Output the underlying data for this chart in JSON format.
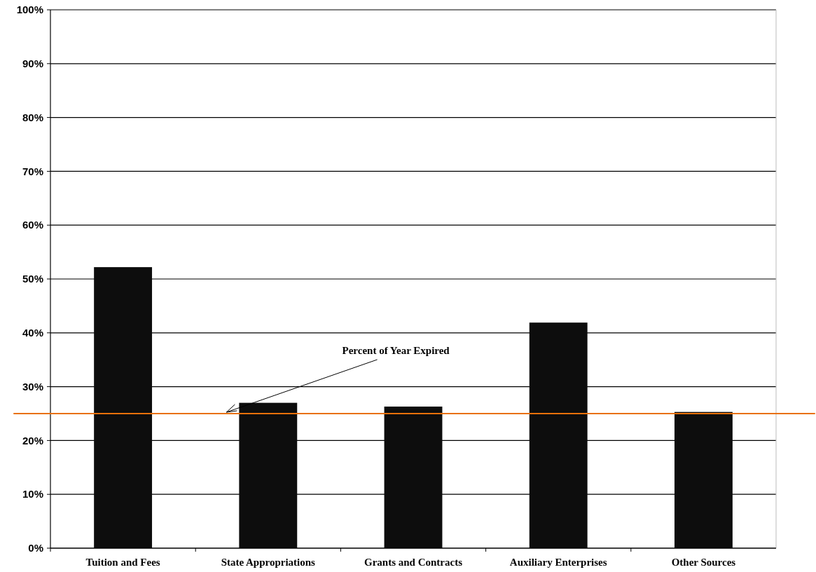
{
  "chart_data": {
    "type": "bar",
    "categories": [
      "Tuition and Fees",
      "State Appropriations",
      "Grants and Contracts",
      "Auxiliary Enterprises",
      "Other Sources"
    ],
    "values": [
      52.2,
      27.0,
      26.3,
      41.9,
      25.3
    ],
    "color": "#0d0d0d",
    "ylim": [
      0,
      100
    ],
    "yticks": [
      {
        "value": 0,
        "label": "0%"
      },
      {
        "value": 10,
        "label": "10%"
      },
      {
        "value": 20,
        "label": "20%"
      },
      {
        "value": 30,
        "label": "30%"
      },
      {
        "value": 40,
        "label": "40%"
      },
      {
        "value": 50,
        "label": "50%"
      },
      {
        "value": 60,
        "label": "60%"
      },
      {
        "value": 70,
        "label": "70%"
      },
      {
        "value": 80,
        "label": "80%"
      },
      {
        "value": 90,
        "label": "90%"
      },
      {
        "value": 100,
        "label": "100%"
      }
    ],
    "grid": "y",
    "ref_lines": [
      {
        "axis": "y",
        "value": 25,
        "label": "Percent of Year Expired",
        "color": "#e8710a",
        "line_style": "solid"
      }
    ]
  }
}
